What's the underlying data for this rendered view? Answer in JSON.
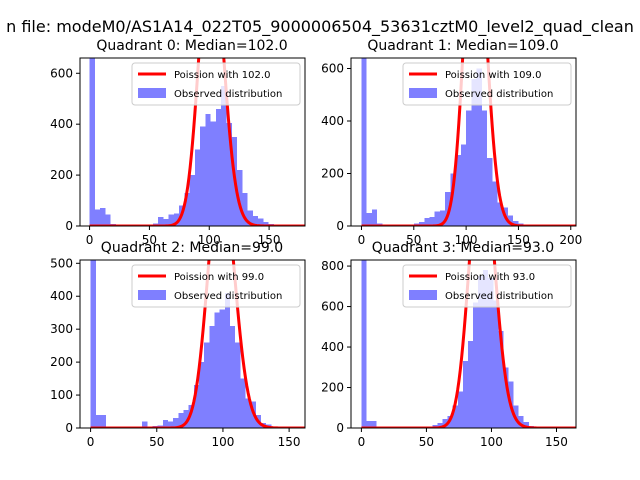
{
  "figure": {
    "suptitle": "n file: modeM0/AS1A14_022T05_9000006504_53631cztM0_level2_quad_clean",
    "colors": {
      "poisson": "#ff0000",
      "observed": "#7f7fff",
      "axes": "#000000",
      "background": "#ffffff"
    }
  },
  "chart_data": [
    {
      "type": "histogram",
      "title": "Quadrant 0: Median=102.0",
      "median": 102.0,
      "xlim": [
        -8,
        180
      ],
      "ylim": [
        0,
        660
      ],
      "xticks": [
        0,
        50,
        100,
        150
      ],
      "yticks": [
        0,
        200,
        400,
        600
      ],
      "bin_width": 4.4,
      "bins": [
        0,
        4.4,
        8.8,
        13.2,
        17.6,
        22,
        26.4,
        30.8,
        35.2,
        39.6,
        44,
        48.4,
        52.8,
        57.2,
        61.6,
        66,
        70.4,
        74.8,
        79.2,
        83.6,
        88,
        92.4,
        96.8,
        101.2,
        105.6,
        110,
        114.4,
        118.8,
        123.2,
        127.6,
        132,
        136.4,
        140.8,
        145.2,
        149.6,
        154,
        158.4,
        162.8,
        167.2,
        171.6
      ],
      "counts": [
        660,
        65,
        70,
        45,
        8,
        5,
        3,
        3,
        4,
        5,
        5,
        6,
        10,
        35,
        28,
        45,
        50,
        80,
        130,
        200,
        300,
        390,
        440,
        410,
        460,
        550,
        405,
        350,
        220,
        130,
        60,
        40,
        30,
        15,
        8,
        5,
        3,
        2,
        2,
        2
      ],
      "series": [
        {
          "name": "Poission with 102.0",
          "kind": "line",
          "mean": 102.0,
          "total_counts": 6500,
          "bin_width": 4.4
        },
        {
          "name": "Observed distribution",
          "kind": "bars"
        }
      ],
      "legend_position": "top-right"
    },
    {
      "type": "histogram",
      "title": "Quadrant 1: Median=109.0",
      "median": 109.0,
      "xlim": [
        -10,
        205
      ],
      "ylim": [
        0,
        640
      ],
      "xticks": [
        0,
        50,
        100,
        150,
        200
      ],
      "yticks": [
        0,
        200,
        400,
        600
      ],
      "bin_width": 5,
      "bins": [
        0,
        5,
        10,
        15,
        20,
        25,
        30,
        35,
        40,
        45,
        50,
        55,
        60,
        65,
        70,
        75,
        80,
        85,
        90,
        95,
        100,
        105,
        110,
        115,
        120,
        125,
        130,
        135,
        140,
        145,
        150,
        155,
        160,
        165,
        170,
        175,
        180,
        185,
        190,
        195
      ],
      "counts": [
        640,
        50,
        62,
        10,
        5,
        5,
        4,
        4,
        5,
        6,
        10,
        15,
        30,
        35,
        55,
        60,
        130,
        200,
        270,
        310,
        440,
        560,
        600,
        440,
        260,
        170,
        90,
        70,
        40,
        20,
        10,
        5,
        3,
        2,
        2,
        2,
        1,
        1,
        1,
        1
      ],
      "series": [
        {
          "name": "Poission with 109.0",
          "kind": "line",
          "mean": 109.0,
          "total_counts": 6500,
          "bin_width": 5
        },
        {
          "name": "Observed distribution",
          "kind": "bars"
        }
      ],
      "legend_position": "top-right"
    },
    {
      "type": "histogram",
      "title": "Quadrant 2: Median=99.0",
      "median": 99.0,
      "xlim": [
        -8,
        162
      ],
      "ylim": [
        0,
        510
      ],
      "xticks": [
        0,
        50,
        100,
        150
      ],
      "yticks": [
        0,
        100,
        200,
        300,
        400,
        500
      ],
      "bin_width": 3.9,
      "bins": [
        0,
        3.9,
        7.8,
        11.7,
        15.6,
        19.5,
        23.4,
        27.3,
        31.2,
        35.1,
        39,
        42.9,
        46.8,
        50.7,
        54.6,
        58.5,
        62.4,
        66.3,
        70.2,
        74.1,
        78,
        81.9,
        85.8,
        89.7,
        93.6,
        97.5,
        101.4,
        105.3,
        109.2,
        113.1,
        117,
        120.9,
        124.8,
        128.7,
        132.6,
        136.5,
        140.4,
        144.3,
        148.2
      ],
      "counts": [
        510,
        40,
        40,
        5,
        3,
        3,
        3,
        3,
        3,
        4,
        20,
        5,
        6,
        8,
        25,
        20,
        30,
        45,
        55,
        70,
        130,
        200,
        260,
        310,
        350,
        360,
        410,
        310,
        260,
        150,
        90,
        80,
        40,
        15,
        10,
        5,
        3,
        2,
        2
      ],
      "series": [
        {
          "name": "Poission with 99.0",
          "kind": "line",
          "mean": 99.0,
          "total_counts": 5000,
          "bin_width": 3.9
        },
        {
          "name": "Observed distribution",
          "kind": "bars"
        }
      ],
      "legend_position": "top-right"
    },
    {
      "type": "histogram",
      "title": "Quadrant 3: Median=93.0",
      "median": 93.0,
      "xlim": [
        -8,
        165
      ],
      "ylim": [
        0,
        830
      ],
      "xticks": [
        0,
        50,
        100,
        150
      ],
      "yticks": [
        0,
        200,
        400,
        600,
        800
      ],
      "bin_width": 3.9,
      "bins": [
        0,
        3.9,
        7.8,
        11.7,
        15.6,
        19.5,
        23.4,
        27.3,
        31.2,
        35.1,
        39,
        42.9,
        46.8,
        50.7,
        54.6,
        58.5,
        62.4,
        66.3,
        70.2,
        74.1,
        78,
        81.9,
        85.8,
        89.7,
        93.6,
        97.5,
        101.4,
        105.3,
        109.2,
        113.1,
        117,
        120.9,
        124.8,
        128.7,
        132.6,
        136.5,
        140.4,
        144.3,
        148.2
      ],
      "counts": [
        830,
        35,
        35,
        5,
        3,
        3,
        3,
        3,
        3,
        3,
        3,
        5,
        5,
        8,
        15,
        25,
        45,
        60,
        110,
        180,
        330,
        430,
        620,
        750,
        780,
        740,
        630,
        480,
        300,
        230,
        110,
        60,
        30,
        10,
        5,
        3,
        2,
        2,
        2
      ],
      "series": [
        {
          "name": "Poission with 93.0",
          "kind": "line",
          "mean": 93.0,
          "total_counts": 8400,
          "bin_width": 3.9
        },
        {
          "name": "Observed distribution",
          "kind": "bars"
        }
      ],
      "legend_position": "top-right"
    }
  ]
}
